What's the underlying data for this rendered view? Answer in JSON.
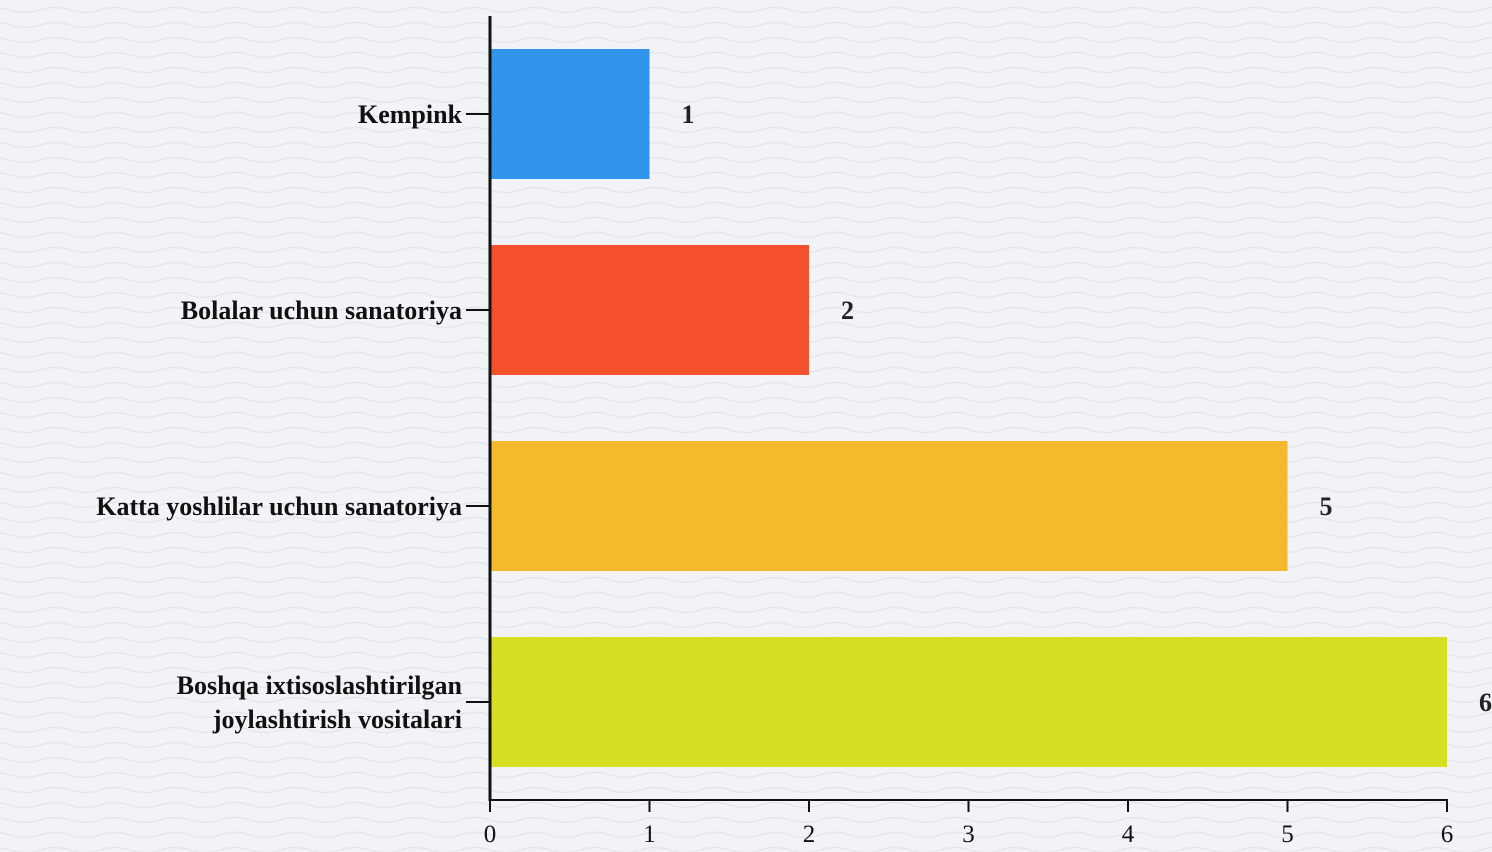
{
  "chart_data": {
    "type": "bar",
    "orientation": "horizontal",
    "categories": [
      [
        "Kempink"
      ],
      [
        "Bolalar uchun sanatoriya"
      ],
      [
        "Katta yoshlilar uchun sanatoriya"
      ],
      [
        "Boshqa ixtisoslashtirilgan",
        "joylashtirish vositalari"
      ]
    ],
    "values": [
      1,
      2,
      5,
      6
    ],
    "value_labels": [
      "1",
      "2",
      "5",
      "6"
    ],
    "colors": [
      "#3195ec",
      "#f5502c",
      "#f5b92e",
      "#d6df22"
    ],
    "xlim": [
      0,
      6
    ],
    "x_ticks": [
      "0",
      "1",
      "2",
      "3",
      "4",
      "5",
      "6"
    ],
    "grid": false,
    "title": "",
    "xlabel": "",
    "ylabel": ""
  }
}
